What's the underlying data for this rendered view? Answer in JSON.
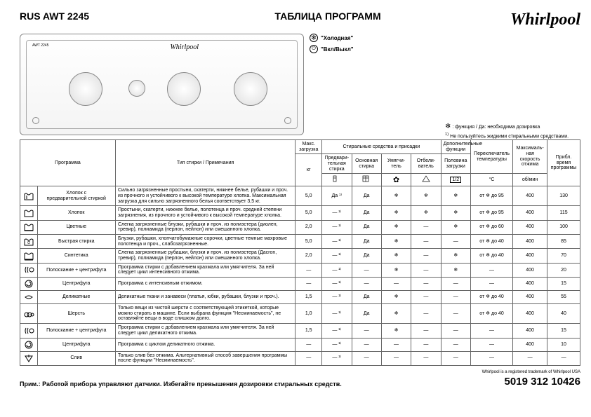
{
  "header": {
    "model": "RUS  AWT 2245",
    "title": "ТАБЛИЦА ПРОГРАММ",
    "brand": "Whirlpool"
  },
  "legend": {
    "cold_icon": "❄",
    "cold_label": "\"Холодная\"",
    "onoff_icon": "⏻",
    "onoff_label": "\"Вкл/Выкл\""
  },
  "notes": {
    "line1_sym": "❄",
    "line1": ": функция / Да: необходима дозировка",
    "line2_sup": "1)",
    "line2": "Не пользуйтесь жидкими стиральными средствами."
  },
  "table": {
    "head": {
      "program": "Программа",
      "wash_type": "Тип стирки / Примечания",
      "max_load": "Макс. загрузка",
      "detergents_group": "Стиральные средства и присадки",
      "prewash": "Предвари-\nтельная\nстирка",
      "mainwash": "Основная\nстирка",
      "softener": "Умягчи-\nтель",
      "bleach": "Отбели-\nватель",
      "extra_group": "Дополнительные\nфункции",
      "half_load": "Половина\nзагрузки",
      "temp": "Переключатель\nтемпературы",
      "spin": "Максималь-\nная\nскорость\nотжима",
      "time": "Прибл.\nвремя\nпрограммы",
      "kg": "кг",
      "half_sym": "1/2",
      "temp_unit": "°C",
      "spin_unit": "об/мин"
    },
    "rows": [
      {
        "icon": "cotton-pre",
        "name": "Хлопок с\nпредварительной стиркой",
        "desc": "Сильно загрязненные простыни, скатерти, нижнее белье, рубашки и проч. из прочного и устойчивого к высокой температуре хлопка. Максимальная загрузка для сильно загрязненного белья соответствует 3,5 кг.",
        "load": "5,0",
        "prewash": "Да ¹⁾",
        "main": "Да",
        "soft": "❄",
        "bleach": "❄",
        "half": "❄",
        "temp": "от ❄ до 95",
        "spin": "400",
        "time": "130"
      },
      {
        "icon": "cotton",
        "name": "Хлопок",
        "desc": "Простыни, скатерти, нижнее белье, полотенца и проч. средней степени загрязнения, из прочного и устойчивого к высокой температуре хлопка.",
        "load": "5,0",
        "prewash": "— ¹⁾",
        "main": "Да",
        "soft": "❄",
        "bleach": "❄",
        "half": "❄",
        "temp": "от ❄ до 95",
        "spin": "400",
        "time": "115"
      },
      {
        "icon": "colors",
        "name": "Цветные",
        "desc": "Слегка загрязненные блузки, рубашки и проч. из полиэстера (диолен, тревир), полиамида (перлон, нейлон) или смешанного хлопка.",
        "load": "2,0",
        "prewash": "— ¹⁾",
        "main": "Да",
        "soft": "❄",
        "bleach": "—",
        "half": "❄",
        "temp": "от ❄ до 60",
        "spin": "400",
        "time": "100"
      },
      {
        "icon": "quick",
        "name": "Быстрая стирка",
        "desc": "Блузки, рубашки, хлопчатобумажные сорочки, цветные темные махровые полотенца и проч., слабозагрязненные.",
        "load": "5,0",
        "prewash": "— ¹⁾",
        "main": "Да",
        "soft": "❄",
        "bleach": "—",
        "half": "—",
        "temp": "от ❄ до 40",
        "spin": "400",
        "time": "85"
      },
      {
        "icon": "synth",
        "name": "Синтетика",
        "desc": "Слегка загрязненные рубашки, блузки и проч. из полиэстера (Дасron, тревир), полиамида (перлон, нейлон) или смешанного хлопка.",
        "load": "2,0",
        "prewash": "— ¹⁾",
        "main": "Да",
        "soft": "❄",
        "bleach": "—",
        "half": "❄",
        "temp": "от ❄ до 40",
        "spin": "400",
        "time": "70"
      },
      {
        "icon": "rinse-spin",
        "name": "Полоскание + центрифуга",
        "desc": "Программа стирки с добавлением крахмала или умягчителя. За ней следует цикл интенсивного отжима.",
        "load": "—",
        "prewash": "— ¹⁾",
        "main": "—",
        "soft": "❄",
        "bleach": "—",
        "half": "❄",
        "temp": "—",
        "spin": "400",
        "time": "20"
      },
      {
        "icon": "spin",
        "name": "Центрифуга",
        "desc": "Программа с интенсивным отжимом.",
        "load": "—",
        "prewash": "— ¹⁾",
        "main": "—",
        "soft": "—",
        "bleach": "—",
        "half": "—",
        "temp": "—",
        "spin": "400",
        "time": "15"
      },
      {
        "icon": "delicate",
        "name": "Деликатные",
        "desc": "Деликатные ткани и занавеси (платья, юбки, рубашки, блузки и проч.).",
        "load": "1,5",
        "prewash": "— ¹⁾",
        "main": "Да",
        "soft": "❄",
        "bleach": "—",
        "half": "—",
        "temp": "от ❄ до 40",
        "spin": "400",
        "time": "55"
      },
      {
        "icon": "wool",
        "name": "Шерсть",
        "desc": "Только вещи из чистой шерсти с соответствующей этикеткой, которые можно стирать в машине. Если выбрана функция \"Несминаемость\", не оставляйте вещи в воде слишком долго.",
        "load": "1,0",
        "prewash": "— ¹⁾",
        "main": "Да",
        "soft": "❄",
        "bleach": "—",
        "half": "—",
        "temp": "от ❄ до 40",
        "spin": "400",
        "time": "40"
      },
      {
        "icon": "rinse-spin2",
        "name": "Полоскание + центрифуга",
        "desc": "Программа стирки с добавлением крахмала или умягчителя. За ней следует цикл деликатного отжима.",
        "load": "1,5",
        "prewash": "— ¹⁾",
        "main": "—",
        "soft": "❄",
        "bleach": "—",
        "half": "—",
        "temp": "—",
        "spin": "400",
        "time": "15"
      },
      {
        "icon": "spin2",
        "name": "Центрифуга",
        "desc": "Программа с циклом деликатного отжима.",
        "load": "—",
        "prewash": "— ¹⁾",
        "main": "—",
        "soft": "—",
        "bleach": "—",
        "half": "—",
        "temp": "—",
        "spin": "400",
        "time": "10"
      },
      {
        "icon": "drain",
        "name": "Слив",
        "desc": "Только слив без отжима. Альтернативный способ завершения программы после функции \"Несминаемость\".",
        "load": "—",
        "prewash": "— ¹⁾",
        "main": "—",
        "soft": "—",
        "bleach": "—",
        "half": "—",
        "temp": "—",
        "spin": "—",
        "time": "—"
      }
    ]
  },
  "footer": {
    "note": "Прим.: Работой прибора управляют датчики. Избегайте превышения дозировки стиральных средств.",
    "trademark": "Whirlpool is a registered trademark of Whirlpool USA",
    "code": "5019 312 10426"
  },
  "colors": {
    "border": "#666666",
    "text": "#000000"
  }
}
